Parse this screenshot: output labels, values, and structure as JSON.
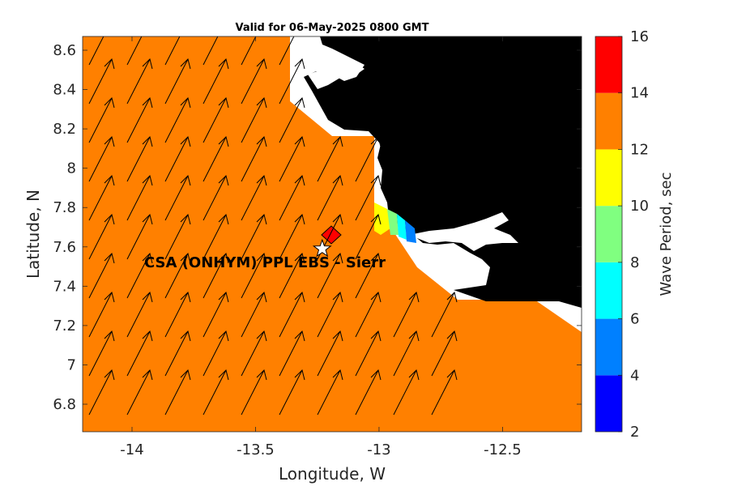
{
  "title": "Valid for 06-May-2025 0800 GMT",
  "map": {
    "xlabel": "Longitude, W",
    "ylabel": "Latitude, N",
    "xlim": [
      -14.2,
      -12.18
    ],
    "ylim": [
      6.66,
      8.67
    ],
    "xticks": [
      "-14",
      "-13.5",
      "-13",
      "-12.5"
    ],
    "xtick_values": [
      -14,
      -13.5,
      -13,
      -12.5
    ],
    "yticks": [
      "6.8",
      "7",
      "7.2",
      "7.4",
      "7.6",
      "7.8",
      "8",
      "8.2",
      "8.4",
      "8.6"
    ],
    "ytick_values": [
      6.8,
      7.0,
      7.2,
      7.4,
      7.6,
      7.8,
      8.0,
      8.2,
      8.4,
      8.6
    ],
    "sea_color": "#ff8000",
    "land_color": "#000000",
    "dominant_wave_period_sec": 13,
    "site_label": "CSA (ONHYM) PPL EBS  - Sierr",
    "site_marker": "white-star",
    "site_lon": -13.23,
    "site_lat": 7.59,
    "hotspot_marker_color": "#ff0000"
  },
  "colorbar": {
    "label": "Wave Period, sec",
    "ticks": [
      "2",
      "4",
      "6",
      "8",
      "10",
      "12",
      "14",
      "16"
    ],
    "bins": [
      {
        "from": 2,
        "to": 4,
        "color": "#0000ff"
      },
      {
        "from": 4,
        "to": 6,
        "color": "#0080ff"
      },
      {
        "from": 6,
        "to": 8,
        "color": "#00ffff"
      },
      {
        "from": 8,
        "to": 10,
        "color": "#80ff80"
      },
      {
        "from": 10,
        "to": 12,
        "color": "#ffff00"
      },
      {
        "from": 12,
        "to": 14,
        "color": "#ff8000"
      },
      {
        "from": 14,
        "to": 16,
        "color": "#ff0000"
      }
    ]
  }
}
